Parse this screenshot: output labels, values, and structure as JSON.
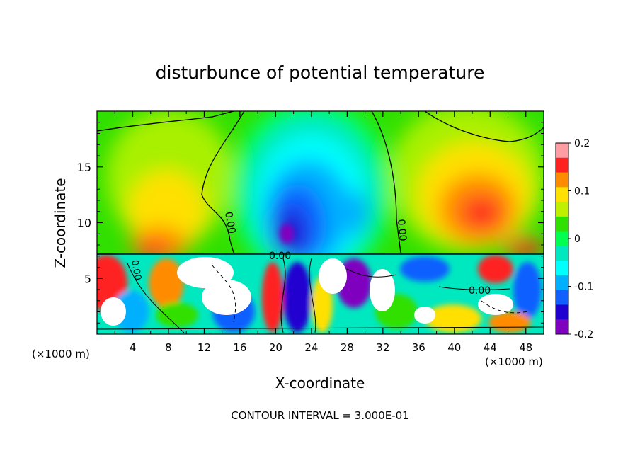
{
  "chart_data": {
    "type": "heatmap",
    "title": "disturbunce of potential temperature",
    "xlabel": "X-coordinate",
    "ylabel": "Z-coordinate",
    "x_unit": "(×1000 m)",
    "y_unit": "(×1000 m)",
    "footer": "CONTOUR INTERVAL = 3.000E-01",
    "xlim": [
      0,
      50
    ],
    "ylim": [
      0,
      20
    ],
    "x_ticks": [
      "4",
      "8",
      "12",
      "16",
      "20",
      "24",
      "28",
      "32",
      "36",
      "40",
      "44",
      "48"
    ],
    "y_ticks": [
      "5",
      "10",
      "15"
    ],
    "colorbar": {
      "range": [
        -0.2,
        0.2
      ],
      "tick_labels": [
        "0.2",
        "0.1",
        "0",
        "-0.1",
        "-0.2"
      ],
      "colors": [
        "#ff9ea2",
        "#ff2020",
        "#ff8c00",
        "#ffe000",
        "#c0f000",
        "#30e000",
        "#00ff50",
        "#00e8c0",
        "#00ffff",
        "#00b0ff",
        "#1060ff",
        "#2000d0",
        "#8000c0"
      ]
    },
    "contour_labels": [
      "0.00",
      "0.00",
      "0.00",
      "0.00",
      "0.00"
    ],
    "features": [
      {
        "name": "cold anomaly",
        "x": 21,
        "z": 11,
        "value": -0.2
      },
      {
        "name": "warm anomaly",
        "x": 43,
        "z": 11,
        "value": 0.12
      },
      {
        "name": "warm anomaly",
        "x": 8,
        "z": 12,
        "value": 0.06
      }
    ]
  }
}
